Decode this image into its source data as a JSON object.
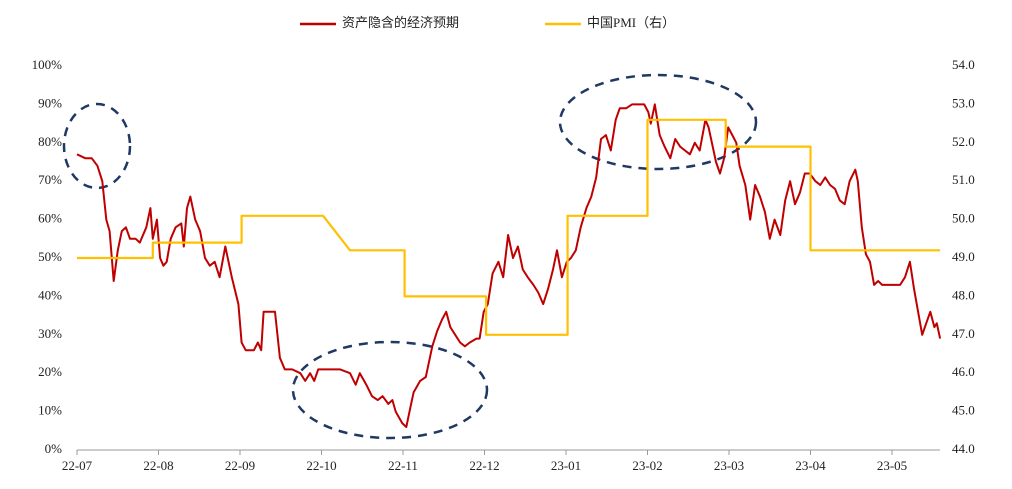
{
  "chart_data": {
    "type": "line",
    "xlim": [
      0,
      10.59
    ],
    "xticks": [
      {
        "value": 0,
        "label": "22-07"
      },
      {
        "value": 1,
        "label": "22-08"
      },
      {
        "value": 2,
        "label": "22-09"
      },
      {
        "value": 3,
        "label": "22-10"
      },
      {
        "value": 4,
        "label": "22-11"
      },
      {
        "value": 5,
        "label": "22-12"
      },
      {
        "value": 6,
        "label": "23-01"
      },
      {
        "value": 7,
        "label": "23-02"
      },
      {
        "value": 8,
        "label": "23-03"
      },
      {
        "value": 9,
        "label": "23-04"
      },
      {
        "value": 10,
        "label": "23-05"
      }
    ],
    "ylim": [
      0,
      100
    ],
    "yticks": [
      {
        "value": 0,
        "label": "0%"
      },
      {
        "value": 10,
        "label": "10%"
      },
      {
        "value": 20,
        "label": "20%"
      },
      {
        "value": 30,
        "label": "30%"
      },
      {
        "value": 40,
        "label": "40%"
      },
      {
        "value": 50,
        "label": "50%"
      },
      {
        "value": 60,
        "label": "60%"
      },
      {
        "value": 70,
        "label": "70%"
      },
      {
        "value": 80,
        "label": "80%"
      },
      {
        "value": 90,
        "label": "90%"
      },
      {
        "value": 100,
        "label": "100%"
      }
    ],
    "y2lim": [
      44,
      54
    ],
    "y2ticks": [
      {
        "value": 44,
        "label": "44.0"
      },
      {
        "value": 45,
        "label": "45.0"
      },
      {
        "value": 46,
        "label": "46.0"
      },
      {
        "value": 47,
        "label": "47.0"
      },
      {
        "value": 48,
        "label": "48.0"
      },
      {
        "value": 49,
        "label": "49.0"
      },
      {
        "value": 50,
        "label": "50.0"
      },
      {
        "value": 51,
        "label": "51.0"
      },
      {
        "value": 52,
        "label": "52.0"
      },
      {
        "value": 53,
        "label": "53.0"
      },
      {
        "value": 54,
        "label": "54.0"
      }
    ],
    "series": [
      {
        "name": "资产隐含的经济预期",
        "color": "#c00000",
        "x": [
          0,
          0.1,
          0.18,
          0.25,
          0.31,
          0.36,
          0.4,
          0.45,
          0.5,
          0.55,
          0.6,
          0.65,
          0.72,
          0.77,
          0.85,
          0.9,
          0.93,
          0.98,
          1.02,
          1.06,
          1.1,
          1.15,
          1.21,
          1.28,
          1.31,
          1.35,
          1.39,
          1.45,
          1.51,
          1.57,
          1.63,
          1.69,
          1.75,
          1.82,
          1.9,
          1.98,
          2.02,
          2.07,
          2.17,
          2.22,
          2.26,
          2.29,
          2.37,
          2.43,
          2.49,
          2.55,
          2.64,
          2.74,
          2.8,
          2.86,
          2.91,
          2.96,
          3.04,
          3.23,
          3.35,
          3.42,
          3.47,
          3.55,
          3.62,
          3.69,
          3.75,
          3.82,
          3.87,
          3.91,
          3.99,
          4.04,
          4.09,
          4.13,
          4.21,
          4.28,
          4.36,
          4.42,
          4.48,
          4.53,
          4.58,
          4.64,
          4.7,
          4.76,
          4.82,
          4.9,
          4.94,
          4.99,
          5.04,
          5.1,
          5.17,
          5.23,
          5.29,
          5.35,
          5.41,
          5.47,
          5.53,
          5.6,
          5.66,
          5.72,
          5.78,
          5.84,
          5.89,
          5.95,
          6.01,
          6.06,
          6.12,
          6.18,
          6.25,
          6.31,
          6.37,
          6.43,
          6.49,
          6.55,
          6.61,
          6.66,
          6.74,
          6.81,
          6.88,
          6.96,
          7.01,
          7.04,
          7.09,
          7.15,
          7.21,
          7.28,
          7.34,
          7.4,
          7.46,
          7.52,
          7.58,
          7.64,
          7.71,
          7.75,
          7.79,
          7.84,
          7.89,
          7.94,
          7.99,
          8.04,
          8.09,
          8.13,
          8.2,
          8.26,
          8.32,
          8.38,
          8.44,
          8.5,
          8.56,
          8.63,
          8.69,
          8.75,
          8.81,
          8.87,
          8.93,
          8.99,
          9.06,
          9.12,
          9.18,
          9.24,
          9.3,
          9.36,
          9.42,
          9.48,
          9.55,
          9.58,
          9.63,
          9.68,
          9.73,
          9.78,
          9.83,
          9.88,
          9.98,
          10.1,
          10.16,
          10.22,
          10.27,
          10.32,
          10.37,
          10.42,
          10.47,
          10.52,
          10.55,
          10.59
        ],
        "values": [
          77,
          76,
          76,
          74,
          70,
          60,
          57,
          44,
          52,
          57,
          58,
          55,
          55,
          54,
          58,
          63,
          55,
          60,
          50,
          48,
          49,
          55,
          58,
          59,
          53,
          63,
          66,
          60,
          57,
          50,
          48,
          49,
          45,
          53,
          45,
          38,
          28,
          26,
          26,
          28,
          26,
          36,
          36,
          36,
          24,
          21,
          21,
          20,
          18,
          20,
          18,
          21,
          21,
          21,
          20,
          17,
          20,
          17,
          14,
          13,
          14,
          12,
          13,
          10,
          7,
          6,
          11,
          15,
          18,
          19,
          27,
          31,
          34,
          36,
          32,
          30,
          28,
          27,
          28,
          29,
          29,
          36,
          38,
          46,
          49,
          45,
          56,
          50,
          53,
          47,
          45,
          43,
          41,
          38,
          42,
          47,
          52,
          45,
          49,
          50,
          52,
          58,
          63,
          66,
          71,
          81,
          82,
          78,
          86,
          89,
          89,
          90,
          90,
          90,
          88,
          85,
          90,
          82,
          79,
          76,
          81,
          79,
          78,
          77,
          80,
          78,
          86,
          84,
          80,
          75,
          72,
          76,
          84,
          82,
          80,
          74,
          69,
          60,
          69,
          66,
          62,
          55,
          60,
          56,
          65,
          70,
          64,
          67,
          72,
          72,
          70,
          69,
          71,
          69,
          68,
          65,
          64,
          70,
          73,
          70,
          58,
          51,
          49,
          43,
          44,
          43,
          43,
          43,
          45,
          49,
          42,
          36,
          30,
          33,
          36,
          32,
          33,
          29
        ]
      },
      {
        "name": "中国PMI（右）",
        "color": "#ffc000",
        "axis": "y2",
        "x": [
          0,
          0.93,
          0.93,
          2.02,
          2.02,
          3.02,
          3.35,
          4.02,
          4.02,
          5.02,
          5.02,
          6.02,
          6.02,
          7.0,
          7.0,
          7.96,
          7.96,
          9.0,
          9.0,
          10.59
        ],
        "values": [
          49.0,
          49.0,
          49.4,
          49.4,
          50.1,
          50.1,
          49.2,
          49.2,
          48.0,
          48.0,
          47.0,
          47.0,
          50.1,
          50.1,
          52.6,
          52.6,
          51.9,
          51.9,
          49.2,
          49.2
        ]
      }
    ]
  }
}
